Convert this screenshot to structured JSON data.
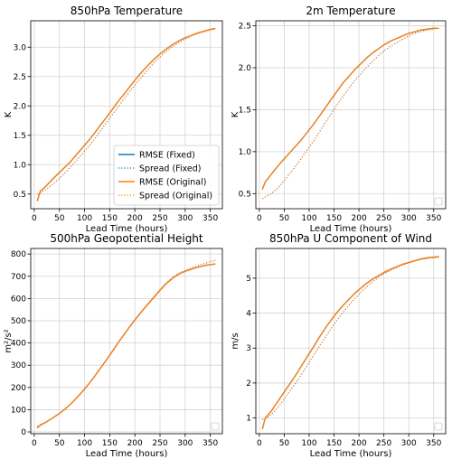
{
  "legend": {
    "entries": [
      {
        "label": "RMSE (Fixed)",
        "color": "#1f77b4",
        "style": "solid"
      },
      {
        "label": "Spread (Fixed)",
        "color": "#1f77b4",
        "style": "dotted"
      },
      {
        "label": "RMSE (Original)",
        "color": "#ff7f0e",
        "style": "solid"
      },
      {
        "label": "Spread (Original)",
        "color": "#ff7f0e",
        "style": "dotted"
      }
    ]
  },
  "chart_data": [
    {
      "type": "line",
      "title": "850hPa Temperature",
      "xlabel": "Lead Time (hours)",
      "ylabel": "K",
      "xlim": [
        -7,
        374
      ],
      "ylim": [
        0.25,
        3.45
      ],
      "xticks": [
        "0",
        "50",
        "100",
        "150",
        "200",
        "250",
        "300",
        "350"
      ],
      "xtick_values": [
        0,
        50,
        100,
        150,
        200,
        250,
        300,
        350
      ],
      "yticks": [
        "0.5",
        "1.0",
        "1.5",
        "2.0",
        "2.5",
        "3.0"
      ],
      "ytick_values": [
        0.5,
        1.0,
        1.5,
        2.0,
        2.5,
        3.0
      ],
      "grid": true,
      "legend": "lower-right",
      "x": [
        6,
        12,
        24,
        36,
        48,
        60,
        72,
        84,
        96,
        108,
        120,
        132,
        144,
        156,
        168,
        180,
        192,
        204,
        216,
        228,
        240,
        252,
        264,
        276,
        288,
        300,
        312,
        324,
        336,
        348,
        360
      ],
      "series": [
        {
          "name": "RMSE (Fixed)",
          "values": [
            0.38,
            0.55,
            0.64,
            0.75,
            0.85,
            0.95,
            1.05,
            1.17,
            1.29,
            1.41,
            1.54,
            1.68,
            1.81,
            1.95,
            2.09,
            2.22,
            2.35,
            2.48,
            2.6,
            2.71,
            2.81,
            2.9,
            2.98,
            3.05,
            3.11,
            3.16,
            3.2,
            3.24,
            3.27,
            3.3,
            3.32
          ]
        },
        {
          "name": "Spread (Fixed)",
          "values": [
            0.5,
            0.52,
            0.58,
            0.66,
            0.75,
            0.85,
            0.96,
            1.07,
            1.19,
            1.31,
            1.44,
            1.58,
            1.72,
            1.86,
            2.0,
            2.14,
            2.27,
            2.4,
            2.52,
            2.64,
            2.75,
            2.85,
            2.94,
            3.02,
            3.08,
            3.14,
            3.19,
            3.23,
            3.26,
            3.29,
            3.31
          ]
        },
        {
          "name": "RMSE (Original)",
          "values": [
            0.38,
            0.55,
            0.64,
            0.75,
            0.85,
            0.95,
            1.05,
            1.17,
            1.29,
            1.41,
            1.54,
            1.68,
            1.81,
            1.95,
            2.09,
            2.22,
            2.35,
            2.48,
            2.6,
            2.71,
            2.81,
            2.9,
            2.98,
            3.05,
            3.11,
            3.16,
            3.2,
            3.24,
            3.27,
            3.3,
            3.32
          ]
        },
        {
          "name": "Spread (Original)",
          "values": [
            0.5,
            0.52,
            0.58,
            0.66,
            0.75,
            0.85,
            0.96,
            1.07,
            1.19,
            1.31,
            1.44,
            1.58,
            1.72,
            1.86,
            2.0,
            2.14,
            2.27,
            2.4,
            2.52,
            2.64,
            2.75,
            2.85,
            2.94,
            3.02,
            3.08,
            3.14,
            3.19,
            3.23,
            3.26,
            3.29,
            3.31
          ]
        }
      ]
    },
    {
      "type": "line",
      "title": "2m Temperature",
      "xlabel": "Lead Time (hours)",
      "ylabel": "K",
      "xlim": [
        -7,
        374
      ],
      "ylim": [
        0.32,
        2.56
      ],
      "xticks": [
        "0",
        "50",
        "100",
        "150",
        "200",
        "250",
        "300",
        "350"
      ],
      "xtick_values": [
        0,
        50,
        100,
        150,
        200,
        250,
        300,
        350
      ],
      "yticks": [
        "0.5",
        "1.0",
        "1.5",
        "2.0",
        "2.5"
      ],
      "ytick_values": [
        0.5,
        1.0,
        1.5,
        2.0,
        2.5
      ],
      "grid": true,
      "legend": "lower-right",
      "x": [
        6,
        12,
        24,
        36,
        48,
        60,
        72,
        84,
        96,
        108,
        120,
        132,
        144,
        156,
        168,
        180,
        192,
        204,
        216,
        228,
        240,
        252,
        264,
        276,
        288,
        300,
        312,
        324,
        336,
        348,
        360
      ],
      "series": [
        {
          "name": "RMSE (Fixed)",
          "values": [
            0.55,
            0.64,
            0.73,
            0.82,
            0.9,
            0.98,
            1.06,
            1.14,
            1.23,
            1.32,
            1.42,
            1.52,
            1.62,
            1.72,
            1.82,
            1.9,
            1.98,
            2.05,
            2.12,
            2.18,
            2.23,
            2.28,
            2.32,
            2.35,
            2.38,
            2.41,
            2.43,
            2.45,
            2.46,
            2.47,
            2.47
          ]
        },
        {
          "name": "Spread (Fixed)",
          "values": [
            0.44,
            0.46,
            0.5,
            0.56,
            0.64,
            0.73,
            0.82,
            0.92,
            1.02,
            1.12,
            1.23,
            1.34,
            1.45,
            1.56,
            1.66,
            1.76,
            1.85,
            1.93,
            2.01,
            2.08,
            2.15,
            2.21,
            2.26,
            2.3,
            2.34,
            2.38,
            2.41,
            2.43,
            2.45,
            2.46,
            2.47
          ]
        },
        {
          "name": "RMSE (Original)",
          "values": [
            0.55,
            0.64,
            0.73,
            0.82,
            0.9,
            0.98,
            1.06,
            1.14,
            1.23,
            1.32,
            1.42,
            1.52,
            1.62,
            1.72,
            1.82,
            1.9,
            1.98,
            2.05,
            2.12,
            2.18,
            2.23,
            2.28,
            2.32,
            2.35,
            2.38,
            2.41,
            2.43,
            2.45,
            2.46,
            2.47,
            2.47
          ]
        },
        {
          "name": "Spread (Original)",
          "values": [
            0.44,
            0.46,
            0.5,
            0.56,
            0.64,
            0.73,
            0.82,
            0.92,
            1.02,
            1.12,
            1.23,
            1.34,
            1.45,
            1.56,
            1.66,
            1.76,
            1.85,
            1.93,
            2.01,
            2.08,
            2.15,
            2.21,
            2.26,
            2.3,
            2.34,
            2.38,
            2.41,
            2.43,
            2.45,
            2.46,
            2.47
          ]
        }
      ]
    },
    {
      "type": "line",
      "title": "500hPa Geopotential Height",
      "xlabel": "Lead Time (hours)",
      "ylabel": "m²/s²",
      "xlim": [
        -7,
        374
      ],
      "ylim": [
        -8,
        825
      ],
      "xticks": [
        "0",
        "50",
        "100",
        "150",
        "200",
        "250",
        "300",
        "350"
      ],
      "xtick_values": [
        0,
        50,
        100,
        150,
        200,
        250,
        300,
        350
      ],
      "yticks": [
        "0",
        "100",
        "200",
        "300",
        "400",
        "500",
        "600",
        "700",
        "800"
      ],
      "ytick_values": [
        0,
        100,
        200,
        300,
        400,
        500,
        600,
        700,
        800
      ],
      "grid": true,
      "legend": "lower-right",
      "x": [
        6,
        12,
        24,
        36,
        48,
        60,
        72,
        84,
        96,
        108,
        120,
        132,
        144,
        156,
        168,
        180,
        192,
        204,
        216,
        228,
        240,
        252,
        264,
        276,
        288,
        300,
        312,
        324,
        336,
        348,
        360
      ],
      "series": [
        {
          "name": "RMSE (Fixed)",
          "values": [
            18,
            30,
            45,
            62,
            80,
            100,
            125,
            152,
            182,
            215,
            250,
            288,
            325,
            365,
            405,
            443,
            480,
            515,
            548,
            580,
            610,
            642,
            670,
            693,
            710,
            722,
            732,
            740,
            747,
            752,
            755
          ]
        },
        {
          "name": "Spread (Fixed)",
          "values": [
            25,
            33,
            45,
            62,
            80,
            100,
            125,
            152,
            182,
            215,
            250,
            288,
            325,
            365,
            405,
            443,
            480,
            515,
            550,
            582,
            614,
            645,
            673,
            697,
            714,
            726,
            737,
            747,
            756,
            764,
            772
          ]
        },
        {
          "name": "RMSE (Original)",
          "values": [
            18,
            30,
            45,
            62,
            80,
            100,
            125,
            152,
            182,
            215,
            250,
            288,
            325,
            365,
            405,
            443,
            480,
            515,
            548,
            580,
            610,
            642,
            670,
            693,
            710,
            722,
            732,
            740,
            747,
            752,
            755
          ]
        },
        {
          "name": "Spread (Original)",
          "values": [
            25,
            33,
            45,
            62,
            80,
            100,
            125,
            152,
            182,
            215,
            250,
            288,
            325,
            365,
            405,
            443,
            480,
            515,
            550,
            582,
            614,
            645,
            673,
            697,
            714,
            726,
            737,
            747,
            756,
            764,
            772
          ]
        }
      ]
    },
    {
      "type": "line",
      "title": "850hPa U Component of Wind",
      "xlabel": "Lead Time (hours)",
      "ylabel": "m/s",
      "xlim": [
        -7,
        374
      ],
      "ylim": [
        0.55,
        5.85
      ],
      "xticks": [
        "0",
        "50",
        "100",
        "150",
        "200",
        "250",
        "300",
        "350"
      ],
      "xtick_values": [
        0,
        50,
        100,
        150,
        200,
        250,
        300,
        350
      ],
      "yticks": [
        "1",
        "2",
        "3",
        "4",
        "5"
      ],
      "ytick_values": [
        1,
        2,
        3,
        4,
        5
      ],
      "grid": true,
      "legend": "lower-right",
      "x": [
        6,
        12,
        24,
        36,
        48,
        60,
        72,
        84,
        96,
        108,
        120,
        132,
        144,
        156,
        168,
        180,
        192,
        204,
        216,
        228,
        240,
        252,
        264,
        276,
        288,
        300,
        312,
        324,
        336,
        348,
        360
      ],
      "series": [
        {
          "name": "RMSE (Fixed)",
          "values": [
            0.68,
            1.0,
            1.2,
            1.45,
            1.7,
            1.95,
            2.2,
            2.48,
            2.75,
            3.02,
            3.3,
            3.56,
            3.8,
            4.02,
            4.22,
            4.4,
            4.57,
            4.72,
            4.86,
            4.98,
            5.08,
            5.18,
            5.26,
            5.33,
            5.4,
            5.45,
            5.5,
            5.55,
            5.58,
            5.6,
            5.62
          ]
        },
        {
          "name": "Spread (Fixed)",
          "values": [
            0.95,
            0.98,
            1.1,
            1.28,
            1.5,
            1.74,
            1.98,
            2.23,
            2.5,
            2.77,
            3.04,
            3.3,
            3.56,
            3.8,
            4.02,
            4.23,
            4.42,
            4.6,
            4.76,
            4.9,
            5.03,
            5.14,
            5.23,
            5.31,
            5.38,
            5.44,
            5.49,
            5.53,
            5.56,
            5.58,
            5.6
          ]
        },
        {
          "name": "RMSE (Original)",
          "values": [
            0.68,
            1.0,
            1.2,
            1.45,
            1.7,
            1.95,
            2.2,
            2.48,
            2.75,
            3.02,
            3.3,
            3.56,
            3.8,
            4.02,
            4.22,
            4.4,
            4.57,
            4.72,
            4.86,
            4.98,
            5.08,
            5.18,
            5.26,
            5.33,
            5.4,
            5.45,
            5.5,
            5.55,
            5.58,
            5.6,
            5.62
          ]
        },
        {
          "name": "Spread (Original)",
          "values": [
            0.95,
            0.98,
            1.1,
            1.28,
            1.5,
            1.74,
            1.98,
            2.23,
            2.5,
            2.77,
            3.04,
            3.3,
            3.56,
            3.8,
            4.02,
            4.23,
            4.42,
            4.6,
            4.76,
            4.9,
            5.03,
            5.14,
            5.23,
            5.31,
            5.38,
            5.44,
            5.49,
            5.53,
            5.56,
            5.58,
            5.6
          ]
        }
      ]
    }
  ]
}
